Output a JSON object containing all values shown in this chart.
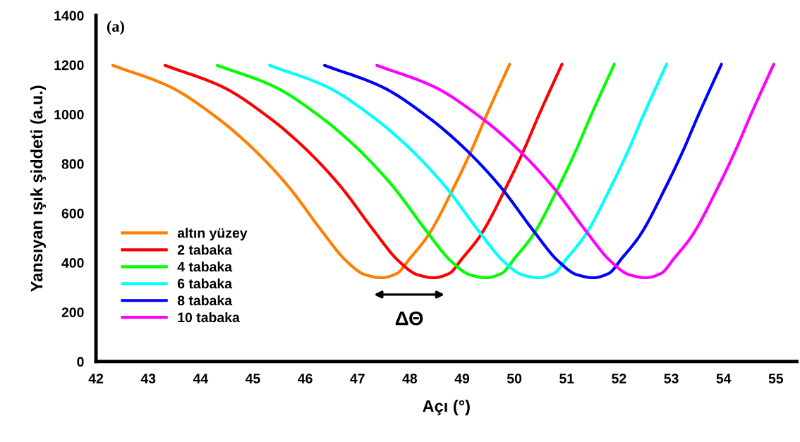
{
  "chart_data": {
    "type": "line",
    "xlabel": "Açı (°)",
    "ylabel": "Yansıyan ışık şiddeti (a.u.)",
    "xlim": [
      42,
      55.4
    ],
    "xticks": [
      42,
      43,
      44,
      45,
      46,
      47,
      48,
      49,
      50,
      51,
      52,
      53,
      54,
      55
    ],
    "ylim": [
      0,
      1400
    ],
    "yticks": [
      0,
      200,
      400,
      600,
      800,
      1000,
      1200,
      1400
    ],
    "grid": false,
    "legend": "lower left",
    "marker": "none",
    "line_style": "solid",
    "annotations": [
      "(a)",
      "ΔΘ"
    ],
    "series": [
      {
        "name": "altın yüzey",
        "color": "#ff8000",
        "x": [
          42.32,
          43.41,
          44.31,
          44.99,
          45.66,
          46.34,
          46.78,
          47.15,
          47.46,
          47.75,
          48.01,
          48.35,
          48.84,
          49.18,
          49.47,
          49.91
        ],
        "values": [
          1198,
          1112,
          987,
          864,
          713,
          522,
          408,
          351,
          339,
          356,
          419,
          510,
          704,
          855,
          998,
          1203
        ]
      },
      {
        "name": "2 tabaka",
        "color": "#ff0000",
        "x": [
          43.32,
          44.41,
          45.31,
          45.99,
          46.66,
          47.34,
          47.78,
          48.15,
          48.46,
          48.75,
          49.01,
          49.35,
          49.84,
          50.18,
          50.47,
          50.91
        ],
        "values": [
          1198,
          1112,
          987,
          864,
          713,
          522,
          408,
          351,
          339,
          356,
          419,
          510,
          704,
          855,
          998,
          1203
        ]
      },
      {
        "name": "4 tabaka",
        "color": "#00ff00",
        "x": [
          44.32,
          45.41,
          46.31,
          46.99,
          47.66,
          48.34,
          48.78,
          49.15,
          49.46,
          49.75,
          50.01,
          50.35,
          50.84,
          51.18,
          51.47,
          51.91
        ],
        "values": [
          1198,
          1112,
          987,
          864,
          713,
          522,
          408,
          351,
          339,
          356,
          419,
          510,
          704,
          855,
          998,
          1203
        ]
      },
      {
        "name": "6 tabaka",
        "color": "#00ffff",
        "x": [
          45.32,
          46.41,
          47.31,
          47.99,
          48.66,
          49.34,
          49.78,
          50.15,
          50.46,
          50.75,
          51.01,
          51.35,
          51.84,
          52.18,
          52.47,
          52.91
        ],
        "values": [
          1198,
          1112,
          987,
          864,
          713,
          522,
          408,
          351,
          339,
          356,
          419,
          510,
          704,
          855,
          998,
          1203
        ]
      },
      {
        "name": "8 tabaka",
        "color": "#0000ff",
        "x": [
          46.37,
          47.46,
          48.36,
          49.04,
          49.71,
          50.39,
          50.83,
          51.2,
          51.51,
          51.8,
          52.06,
          52.4,
          52.89,
          53.23,
          53.52,
          53.96
        ],
        "values": [
          1198,
          1112,
          987,
          864,
          713,
          522,
          408,
          351,
          339,
          356,
          419,
          510,
          704,
          855,
          998,
          1203
        ]
      },
      {
        "name": "10 tabaka",
        "color": "#ff00ff",
        "x": [
          47.37,
          48.46,
          49.36,
          50.04,
          50.71,
          51.39,
          51.83,
          52.2,
          52.51,
          52.8,
          53.06,
          53.4,
          53.89,
          54.23,
          54.52,
          54.96
        ],
        "values": [
          1198,
          1112,
          987,
          864,
          713,
          522,
          408,
          351,
          339,
          356,
          419,
          510,
          704,
          855,
          998,
          1203
        ]
      }
    ]
  }
}
